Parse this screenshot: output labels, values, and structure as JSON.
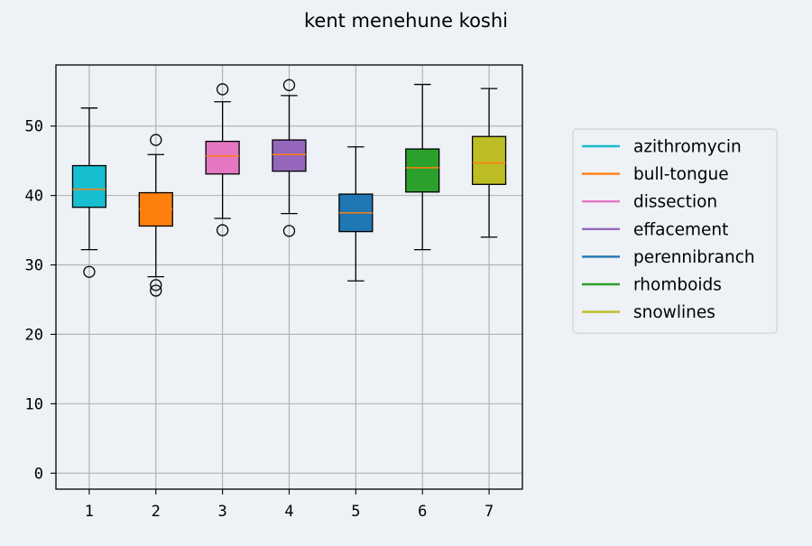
{
  "chart_data": {
    "type": "box",
    "title": "kent menehune koshi",
    "xlabel": "",
    "ylabel": "",
    "categories": [
      "1",
      "2",
      "3",
      "4",
      "5",
      "6",
      "7"
    ],
    "yticks": [
      0,
      10,
      20,
      30,
      40,
      50
    ],
    "ylim": [
      -2.3,
      58.8
    ],
    "grid": true,
    "legend_position": "right",
    "series": [
      {
        "name": "azithromycin",
        "color": "#17becf",
        "whisker_low": 32.2,
        "q1": 38.3,
        "median": 40.9,
        "q3": 44.3,
        "whisker_high": 52.6,
        "outliers": [
          29.0
        ]
      },
      {
        "name": "bull-tongue",
        "color": "#ff7f0e",
        "whisker_low": 28.3,
        "q1": 35.6,
        "median": 38.0,
        "q3": 40.4,
        "whisker_high": 45.9,
        "outliers": [
          48.0,
          27.1,
          26.3
        ]
      },
      {
        "name": "dissection",
        "color": "#e377c2",
        "whisker_low": 36.7,
        "q1": 43.1,
        "median": 45.7,
        "q3": 47.8,
        "whisker_high": 53.5,
        "outliers": [
          55.3,
          35.0
        ]
      },
      {
        "name": "effacement",
        "color": "#9467bd",
        "whisker_low": 37.4,
        "q1": 43.5,
        "median": 45.9,
        "q3": 48.0,
        "whisker_high": 54.4,
        "outliers": [
          55.9,
          34.9
        ]
      },
      {
        "name": "perennibranch",
        "color": "#1f77b4",
        "whisker_low": 27.7,
        "q1": 34.8,
        "median": 37.5,
        "q3": 40.2,
        "whisker_high": 47.0,
        "outliers": []
      },
      {
        "name": "rhomboids",
        "color": "#2ca02c",
        "whisker_low": 32.2,
        "q1": 40.5,
        "median": 44.0,
        "q3": 46.7,
        "whisker_high": 56.0,
        "outliers": []
      },
      {
        "name": "snowlines",
        "color": "#bcbd22",
        "whisker_low": 34.0,
        "q1": 41.6,
        "median": 44.7,
        "q3": 48.5,
        "whisker_high": 55.4,
        "outliers": []
      }
    ],
    "median_color": "#ff7f0e"
  }
}
